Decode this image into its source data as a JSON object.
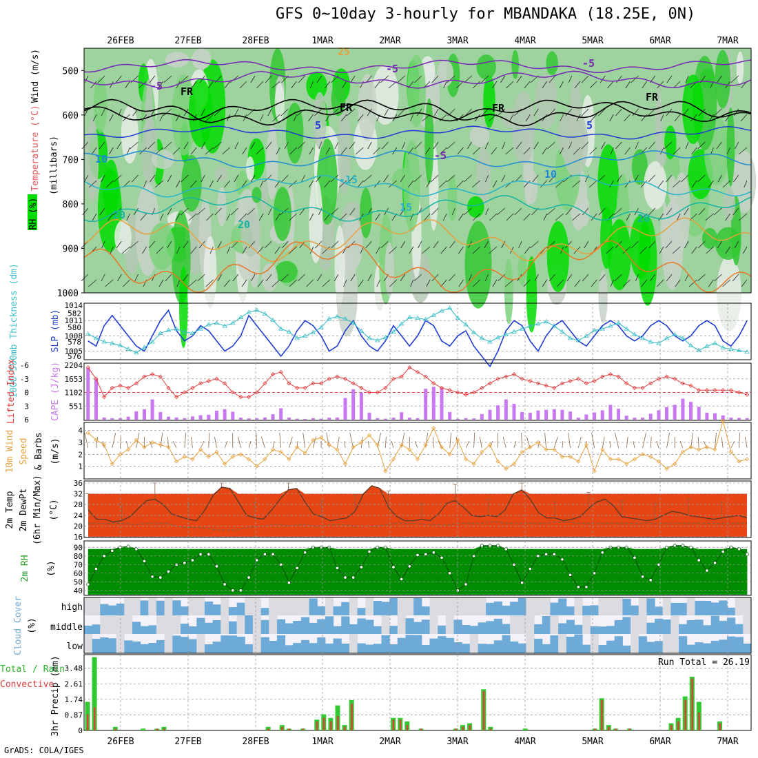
{
  "title": "GFS 0~10day 3-hourly for MBANDAKA (18.25E, 0N)",
  "credit": "GrADS: COLA/IGES",
  "date_labels": [
    "26FEB",
    "27FEB",
    "28FEB",
    "1MAR",
    "2MAR",
    "3MAR",
    "4MAR",
    "5MAR",
    "6MAR",
    "7MAR"
  ],
  "run_total_label": "Run Total = 26.19",
  "colors": {
    "rh_green": "#00dc00",
    "rh_light": "#c8d2c8",
    "slp": "#1e3cd2",
    "thickness": "#3cbec8",
    "lifted": "#e63c3c",
    "cape": "#c878f0",
    "wind": "#e6a03c",
    "temp_hot": "#e65a14",
    "dewpt": "#8c5a3c",
    "cloud": "#6eaad8",
    "precip_total": "#32c832",
    "precip_conv": "#e63c3c"
  },
  "chart_data": [
    {
      "type": "heatmap",
      "ylabel": "(millibars)",
      "side_labels": [
        "Wind (m/s)",
        "Temperature (°C)",
        "RH (%)"
      ],
      "y_ticks": [
        "500",
        "600",
        "700",
        "800",
        "900",
        "1000"
      ],
      "ylim": [
        1000,
        450
      ],
      "contour_labels": [
        "-5",
        "-5",
        "-5",
        "FR",
        "FR",
        "FR",
        "FR",
        "5",
        "5",
        "10",
        "10",
        "-15",
        "15",
        "20",
        "20",
        "20",
        "25",
        "-5"
      ]
    },
    {
      "type": "line",
      "ylabel_left": "1000-500mb Thickness (dm)",
      "ylabel_right": "SLP (mb)",
      "left_ticks": [
        "582",
        "580",
        "578",
        "576"
      ],
      "right_ticks": [
        "1014",
        "1011",
        "1008",
        "1005"
      ],
      "series": [
        {
          "name": "SLP (mb)",
          "axis": "right",
          "values": [
            1007,
            1006,
            1010,
            1012,
            1010,
            1008,
            1006,
            1005,
            1008,
            1011,
            1013,
            1009,
            1007,
            1008,
            1010,
            1009,
            1007,
            1005,
            1006,
            1008,
            1012,
            1010,
            1008,
            1006,
            1004,
            1006,
            1009,
            1011,
            1010,
            1008,
            1005,
            1006,
            1009,
            1011,
            1008,
            1006,
            1005,
            1007,
            1010,
            1008,
            1006,
            1008,
            1011,
            1010,
            1007,
            1006,
            1008,
            1009,
            1006,
            1004,
            1002,
            1005,
            1009,
            1011,
            1010,
            1007,
            1005,
            1008,
            1010,
            1011,
            1009,
            1007,
            1006,
            1008,
            1010,
            1011,
            1010,
            1008,
            1007,
            1008,
            1010,
            1011,
            1010,
            1008,
            1007,
            1008,
            1010,
            1011,
            1010,
            1007,
            1006,
            1008,
            1011
          ]
        },
        {
          "name": "1000-500mb Thickness (dm)",
          "axis": "left",
          "values": [
            579.1,
            578.5,
            578,
            577.8,
            577.5,
            577,
            576.5,
            577.2,
            578,
            579.2,
            579.6,
            579.8,
            579.4,
            579.2,
            579.8,
            580.4,
            580.6,
            580.2,
            580.6,
            581.4,
            582.1,
            582.4,
            581.9,
            581,
            579.8,
            579.4,
            578.5,
            578.8,
            579.3,
            580,
            581.2,
            581.5,
            581.2,
            580.6,
            579.5,
            578.5,
            578.2,
            578.6,
            579.4,
            580.5,
            581.4,
            581.3,
            581.1,
            581.7,
            582.3,
            582.7,
            581.3,
            580.4,
            579.3,
            578.5,
            578,
            578.6,
            579,
            579.4,
            579.8,
            580.2,
            580.5,
            580.8,
            580.2,
            579.4,
            578.5,
            578.2,
            578.8,
            579.6,
            579.8,
            580.2,
            580.6,
            579.8,
            579,
            578.5,
            578,
            577.8,
            578.5,
            579,
            578.5,
            577.5,
            576.8,
            577.4,
            577.8,
            577.2,
            577,
            576.8,
            576.6
          ]
        }
      ]
    },
    {
      "type": "bar",
      "ylabel_left": "Lifted Index",
      "ylabel_right": "CAPE (J/kg)",
      "left_ticks": [
        "-6",
        "-3",
        "0",
        "3",
        "6"
      ],
      "right_ticks": [
        "2204",
        "1653",
        "1102",
        "551"
      ],
      "series": [
        {
          "name": "CAPE (J/kg)",
          "axis": "right",
          "values": [
            2100,
            1650,
            90,
            60,
            60,
            120,
            340,
            420,
            820,
            310,
            120,
            90,
            60,
            130,
            180,
            200,
            360,
            420,
            320,
            80,
            50,
            60,
            90,
            220,
            460,
            80,
            40,
            30,
            60,
            40,
            80,
            90,
            880,
            1230,
            1100,
            280,
            60,
            40,
            80,
            300,
            80,
            60,
            1250,
            1330,
            1290,
            310,
            40,
            60,
            50,
            230,
            400,
            580,
            820,
            640,
            310,
            280,
            370,
            400,
            420,
            400,
            330,
            80,
            210,
            290,
            380,
            600,
            440,
            160,
            80,
            80,
            240,
            380,
            510,
            600,
            850,
            720,
            520,
            280,
            260,
            170,
            80,
            70,
            60
          ]
        },
        {
          "name": "Lifted Index",
          "axis": "left",
          "values": [
            -5.5,
            -3,
            1,
            -1,
            -1.5,
            -1,
            -2,
            -3.5,
            -4,
            -3.5,
            -1,
            1,
            0,
            -1,
            -2,
            -2.5,
            -3,
            -2,
            0,
            1,
            1,
            0,
            -2,
            -4,
            -4.5,
            -2,
            -1,
            -1,
            -2,
            -2,
            -3,
            -3.5,
            -3,
            -2,
            -1,
            0,
            0,
            -1,
            -3,
            -3.5,
            -5.5,
            -4.5,
            -3.5,
            -2,
            -1,
            -0.5,
            0,
            0.5,
            0,
            -1,
            -2,
            -3,
            -3.5,
            -4,
            -3,
            -2.5,
            -2,
            -1.5,
            -1,
            -2,
            -2.5,
            -3,
            -2,
            -2.5,
            -3.5,
            -4,
            -3.5,
            -2,
            -1,
            -1,
            -2,
            -3,
            -3.5,
            -3,
            -2,
            -1.5,
            -0.5,
            -0.5,
            -0.5,
            -0.5,
            -0.5,
            0,
            0.5
          ]
        }
      ]
    },
    {
      "type": "line",
      "ylabel": "10m Wind Speed (m/s) & Barbs",
      "y_ticks": [
        "4",
        "3",
        "2",
        "1"
      ],
      "ylim": [
        0,
        4.5
      ],
      "series": [
        {
          "name": "10m Wind Speed",
          "values": [
            3.8,
            3.2,
            2.8,
            1.2,
            2,
            2.4,
            3.2,
            2.6,
            3,
            2.8,
            2.6,
            1.4,
            1.8,
            1.6,
            2.4,
            1.8,
            2.2,
            1.2,
            1.8,
            2,
            1.6,
            1,
            1.6,
            2.4,
            2.2,
            1.6,
            2.6,
            2.1,
            3.2,
            3.4,
            2.8,
            2.4,
            1.2,
            2.6,
            3,
            3.6,
            2.8,
            0.6,
            1.6,
            2.8,
            2.4,
            1.6,
            2.8,
            4.2,
            2.6,
            2,
            3.2,
            1.6,
            1.2,
            2.2,
            2.8,
            1.4,
            0.8,
            1.2,
            2.2,
            2.6,
            3,
            2.4,
            2.4,
            1.8,
            1.8,
            1.4,
            2.8,
            0.6,
            2.4,
            1.6,
            1.6,
            1.2,
            1.6,
            2,
            1.8,
            1.4,
            0.8,
            1.2,
            2.2,
            2.6,
            2.4,
            2.6,
            2.4,
            4.8,
            2.2,
            1.4,
            1.6
          ]
        }
      ]
    },
    {
      "type": "area",
      "ylabel": "2m Temp 2m DewPt (6hr Min/Max) (°C)",
      "y_ticks": [
        "36",
        "32",
        "28",
        "24",
        "20",
        "16"
      ],
      "ylim": [
        16,
        36
      ],
      "series": [
        {
          "name": "2m Temp",
          "values": [
            26,
            22.5,
            22.5,
            21.5,
            22,
            23.5,
            26.5,
            29.5,
            30,
            28,
            24.5,
            23.5,
            22.5,
            22,
            26,
            31.5,
            34.5,
            34,
            29,
            24,
            23,
            22.5,
            26,
            30,
            33.5,
            34,
            29,
            24.5,
            23.5,
            22,
            22.5,
            23,
            25.5,
            32,
            35,
            34,
            27,
            23.5,
            22,
            22,
            22.5,
            22,
            24.5,
            28.5,
            29.5,
            27,
            24,
            23.5,
            24,
            23.5,
            26,
            32,
            33.5,
            30,
            25,
            23,
            23,
            22,
            22.5,
            23.5,
            26.5,
            29,
            30,
            27.5,
            23.5,
            23,
            22.5,
            22,
            22.5,
            24,
            25.5,
            25,
            24,
            23.5,
            23,
            22.5,
            23,
            23.5,
            24,
            23
          ]
        },
        {
          "name": "2m DewPt",
          "values": [
            21,
            21,
            21,
            21,
            21,
            21,
            20.5,
            21,
            21,
            21,
            21,
            20,
            19.5,
            19.5,
            19.5,
            19,
            18.5,
            18.5,
            18.5,
            19,
            19.5,
            20,
            20,
            20.5,
            20.5,
            20,
            20.5,
            20.5,
            20,
            20,
            20.5,
            20.5,
            20.5,
            20,
            20,
            20,
            20,
            20.5,
            21,
            21,
            21,
            21,
            20.5,
            20.5,
            20.5,
            20.5,
            21,
            21,
            21,
            21,
            21.5,
            21.5,
            21,
            21,
            21,
            21,
            21,
            21,
            21.5,
            21.5,
            21.5,
            21,
            21,
            21,
            21,
            21,
            21,
            21,
            21,
            21,
            21,
            21,
            21,
            21,
            21,
            21,
            21,
            21,
            21,
            21,
            21,
            21,
            21
          ]
        }
      ]
    },
    {
      "type": "area",
      "ylabel": "2m RH (%)",
      "y_ticks": [
        "90",
        "80",
        "70",
        "60",
        "50",
        "40"
      ],
      "ylim": [
        35,
        95
      ],
      "series": [
        {
          "name": "2m RH",
          "values": [
            47,
            65,
            80,
            86,
            90,
            91,
            88,
            74,
            56,
            55,
            62,
            70,
            72,
            75,
            82,
            82,
            68,
            47,
            40,
            40,
            55,
            75,
            82,
            82,
            70,
            49,
            66,
            84,
            90,
            90,
            90,
            66,
            55,
            55,
            67,
            85,
            90,
            90,
            67,
            53,
            68,
            81,
            82,
            84,
            78,
            60,
            40,
            47,
            80,
            92,
            92,
            92,
            88,
            70,
            49,
            65,
            80,
            82,
            82,
            76,
            58,
            44,
            44,
            60,
            84,
            90,
            90,
            90,
            78,
            56,
            52,
            70,
            90,
            92,
            92,
            90,
            75,
            63,
            72,
            85,
            90,
            88,
            82
          ]
        }
      ]
    },
    {
      "type": "heatmap",
      "ylabel": "Cloud Cover (%)",
      "categories": [
        "high",
        "middle",
        "low"
      ]
    },
    {
      "type": "bar",
      "ylabel": "3hr Precip (mm)",
      "side_labels": [
        "Total / Rain",
        "Convective"
      ],
      "y_ticks": [
        "3.48",
        "2.61",
        "1.74",
        "0.87",
        "0"
      ],
      "ylim": [
        0,
        4.2
      ],
      "series": [
        {
          "name": "Total",
          "values": [
            1.6,
            4.1,
            0,
            0,
            0.2,
            0,
            0,
            0,
            0.1,
            0,
            0.1,
            0.2,
            0,
            0,
            0,
            0,
            0,
            0,
            0,
            0,
            0,
            0,
            0,
            0,
            0,
            0,
            0.2,
            0,
            0.3,
            0.1,
            0,
            0.1,
            0,
            0.6,
            0.9,
            0.7,
            1.4,
            0.3,
            1.7,
            0,
            0,
            0,
            0,
            0,
            0.7,
            0.7,
            0.5,
            0,
            0.1,
            0,
            0,
            0,
            0,
            0.1,
            0.3,
            0.4,
            0,
            2.3,
            0.2,
            0,
            0,
            0,
            0,
            0.1,
            0,
            0,
            0,
            0,
            0,
            0,
            0,
            0,
            0,
            0.1,
            1.8,
            0.3,
            0.1,
            0,
            0.1,
            0,
            0,
            0,
            0,
            0,
            0.4,
            0.7,
            1.9,
            3.0,
            1.6,
            0,
            0,
            0.5,
            0,
            0,
            0,
            0
          ]
        },
        {
          "name": "Convective",
          "values": [
            0.9,
            1.3,
            0,
            0,
            0.1,
            0,
            0,
            0,
            0,
            0,
            0.1,
            0.1,
            0,
            0,
            0,
            0,
            0,
            0,
            0,
            0,
            0,
            0,
            0,
            0,
            0,
            0,
            0.1,
            0,
            0.2,
            0.1,
            0,
            0.1,
            0,
            0.5,
            0.7,
            0.5,
            0.8,
            0.2,
            1.5,
            0,
            0,
            0,
            0,
            0,
            0.6,
            0.6,
            0.3,
            0,
            0.1,
            0,
            0,
            0,
            0,
            0.1,
            0.2,
            0.3,
            0,
            2.2,
            0.1,
            0,
            0,
            0,
            0,
            0,
            0,
            0,
            0,
            0,
            0,
            0,
            0,
            0,
            0,
            0.1,
            1.7,
            0.2,
            0.1,
            0,
            0.1,
            0,
            0,
            0,
            0,
            0,
            0.3,
            0.5,
            1.7,
            2.9,
            1.0,
            0,
            0,
            0.4,
            0,
            0,
            0,
            0
          ]
        }
      ]
    }
  ]
}
